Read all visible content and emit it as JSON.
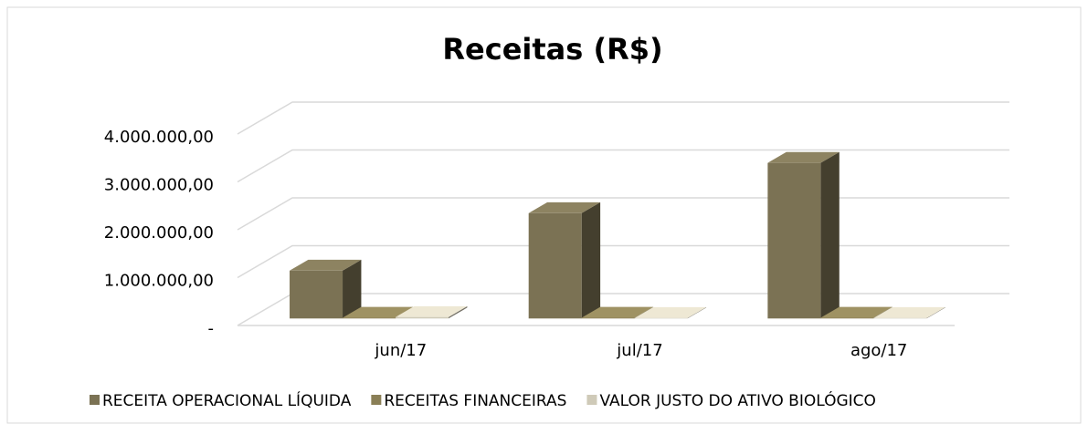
{
  "chart_data": {
    "type": "bar3d",
    "title": "Receitas (R$)",
    "categories": [
      "jun/17",
      "jul/17",
      "ago/17"
    ],
    "series": [
      {
        "name": "RECEITA OPERACIONAL LÍQUIDA",
        "color": "#7b7254",
        "values": [
          1000000,
          2200000,
          3250000
        ]
      },
      {
        "name": "RECEITAS FINANCEIRAS",
        "color": "#8a7f56",
        "values": [
          15000,
          15000,
          15000
        ]
      },
      {
        "name": "VALOR JUSTO DO ATIVO BIOLÓGICO",
        "color": "#cfcab8",
        "values": [
          30000,
          10000,
          10000
        ]
      }
    ],
    "ylim": [
      0,
      4000000
    ],
    "yticks": [
      {
        "value": 0,
        "label": "-"
      },
      {
        "value": 1000000,
        "label": "1.000.000,00"
      },
      {
        "value": 2000000,
        "label": "2.000.000,00"
      },
      {
        "value": 3000000,
        "label": "3.000.000,00"
      },
      {
        "value": 4000000,
        "label": "4.000.000,00"
      }
    ],
    "grid": true,
    "legend": "bottom"
  }
}
